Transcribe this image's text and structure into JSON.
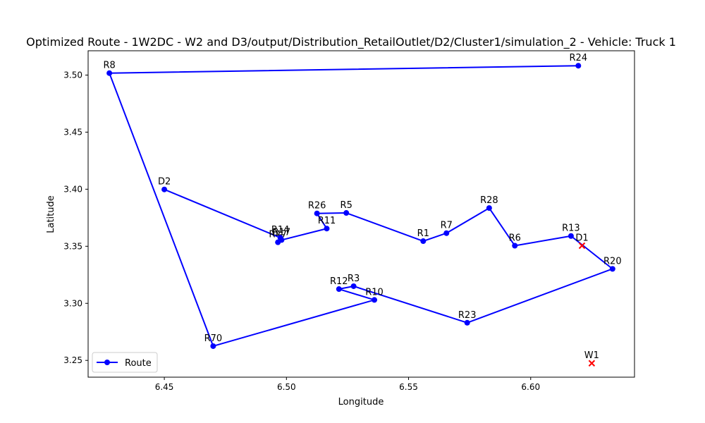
{
  "chart_data": {
    "type": "line",
    "title": "Optimized Route - 1W2DC - W2 and D3/output/Distribution_RetailOutlet/D2/Cluster1/simulation_2 - Vehicle: Truck 1",
    "xlabel": "Longitude",
    "ylabel": "Latitude",
    "xlim": [
      6.4188,
      6.6425
    ],
    "ylim": [
      3.2353,
      3.5213
    ],
    "xticks": [
      "6.45",
      "6.50",
      "6.55",
      "6.60"
    ],
    "yticks": [
      "3.25",
      "3.30",
      "3.35",
      "3.40",
      "3.45",
      "3.50"
    ],
    "grid": false,
    "legend": {
      "position": "bottom-left",
      "entries": [
        "Route"
      ]
    },
    "route_color": "#0000ff",
    "marker_color": "#ff0000",
    "series": [
      {
        "name": "Route",
        "points": [
          {
            "label": "R24",
            "x": 6.6195,
            "y": 3.5082
          },
          {
            "label": "R8",
            "x": 6.4275,
            "y": 3.5017
          },
          {
            "label": "R70",
            "x": 6.47,
            "y": 3.2625
          },
          {
            "label": "R10",
            "x": 6.536,
            "y": 3.303
          },
          {
            "label": "R12",
            "x": 6.5215,
            "y": 3.3125
          },
          {
            "label": "R3",
            "x": 6.5275,
            "y": 3.315
          },
          {
            "label": "R23",
            "x": 6.574,
            "y": 3.283
          },
          {
            "label": "R20",
            "x": 6.6335,
            "y": 3.3302
          },
          {
            "label": "R13",
            "x": 6.6165,
            "y": 3.359
          },
          {
            "label": "R6",
            "x": 6.5935,
            "y": 3.3505
          },
          {
            "label": "R28",
            "x": 6.583,
            "y": 3.3835
          },
          {
            "label": "R7",
            "x": 6.5655,
            "y": 3.3615
          },
          {
            "label": "R1",
            "x": 6.556,
            "y": 3.3545
          },
          {
            "label": "R5",
            "x": 6.5245,
            "y": 3.3792
          },
          {
            "label": "R26",
            "x": 6.5125,
            "y": 3.3788
          },
          {
            "label": "R11",
            "x": 6.5165,
            "y": 3.3655
          },
          {
            "label": "R17",
            "x": 6.498,
            "y": 3.3555
          },
          {
            "label": "R47",
            "x": 6.4965,
            "y": 3.3535
          },
          {
            "label": "R14",
            "x": 6.4975,
            "y": 3.3575
          },
          {
            "label": "D2",
            "x": 6.45,
            "y": 3.3998
          }
        ]
      }
    ],
    "markers": [
      {
        "label": "D1",
        "x": 6.621,
        "y": 3.3505
      },
      {
        "label": "W1",
        "x": 6.625,
        "y": 3.2475
      }
    ]
  }
}
